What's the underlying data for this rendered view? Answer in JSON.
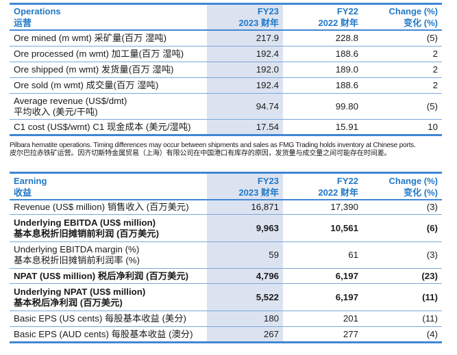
{
  "colors": {
    "accent": "#1f78c8",
    "rule": "#3f86d4",
    "shade": "#dce3f0"
  },
  "operations": {
    "header": {
      "label_en": "Operations",
      "label_zh": "运营",
      "fy23_en": "FY23",
      "fy23_zh": "2023 财年",
      "fy22_en": "FY22",
      "fy22_zh": "2022 财年",
      "change_en": "Change (%)",
      "change_zh": "变化 (%)"
    },
    "rows": [
      {
        "label": "Ore mined (m wmt) 采矿量(百万 湿吨)",
        "fy23": "217.9",
        "fy22": "228.8",
        "change": "(5)"
      },
      {
        "label": "Ore processed (m wmt) 加工量(百万 湿吨)",
        "fy23": "192.4",
        "fy22": "188.6",
        "change": "2"
      },
      {
        "label": "Ore shipped (m wmt) 发货量(百万 湿吨)",
        "fy23": "192.0",
        "fy22": "189.0",
        "change": "2"
      },
      {
        "label": "Ore sold (m wmt) 成交量(百万 湿吨)",
        "fy23": "192.4",
        "fy22": "188.6",
        "change": "2"
      },
      {
        "label": "Average revenue (US$/dmt)",
        "label2": "平均收入 (美元/干吨)",
        "fy23": "94.74",
        "fy22": "99.80",
        "change": "(5)"
      },
      {
        "label": "C1 cost (US$/wmt) C1 现金成本 (美元/湿吨)",
        "fy23": "17.54",
        "fy22": "15.91",
        "change": "10"
      }
    ]
  },
  "footnote": {
    "en": "Pilbara hematite operations. Timing differences may occur between shipments and sales as FMG Trading holds inventory at Chinese ports.",
    "zh": "皮尔巴拉赤铁矿运营。因齐切斯特金属贸易（上海）有限公司在中国港口有库存的原因，发货量与成交量之间可能存在时间差。"
  },
  "earning": {
    "header": {
      "label_en": "Earning",
      "label_zh": "收益",
      "fy23_en": "FY23",
      "fy23_zh": "2023 财年",
      "fy22_en": "FY22",
      "fy22_zh": "2022 财年",
      "change_en": "Change (%)",
      "change_zh": "变化 (%)"
    },
    "rows": [
      {
        "label": "Revenue (US$ million) 销售收入 (百万美元)",
        "fy23": "16,871",
        "fy22": "17,390",
        "change": "(3)"
      },
      {
        "label": "Underlying EBITDA (US$ million)",
        "label2": "基本息税折旧摊销前利润 (百万美元)",
        "fy23": "9,963",
        "fy22": "10,561",
        "change": "(6)"
      },
      {
        "label": "Underlying EBITDA margin (%)",
        "label2": "基本息税折旧摊销前利润率 (%)",
        "fy23": "59",
        "fy22": "61",
        "change": "(3)"
      },
      {
        "label": "NPAT (US$ million) 税后净利润 (百万美元)",
        "fy23": "4,796",
        "fy22": "6,197",
        "change": "(23)"
      },
      {
        "label": "Underlying NPAT (US$ million)",
        "label2": "基本税后净利润 (百万美元)",
        "fy23": "5,522",
        "fy22": "6,197",
        "change": "(11)"
      },
      {
        "label": "Basic EPS (US cents) 每股基本收益 (美分)",
        "fy23": "180",
        "fy22": "201",
        "change": "(11)"
      },
      {
        "label": "Basic EPS (AUD cents) 每股基本收益 (澳分)",
        "fy23": "267",
        "fy22": "277",
        "change": "(4)"
      }
    ]
  }
}
